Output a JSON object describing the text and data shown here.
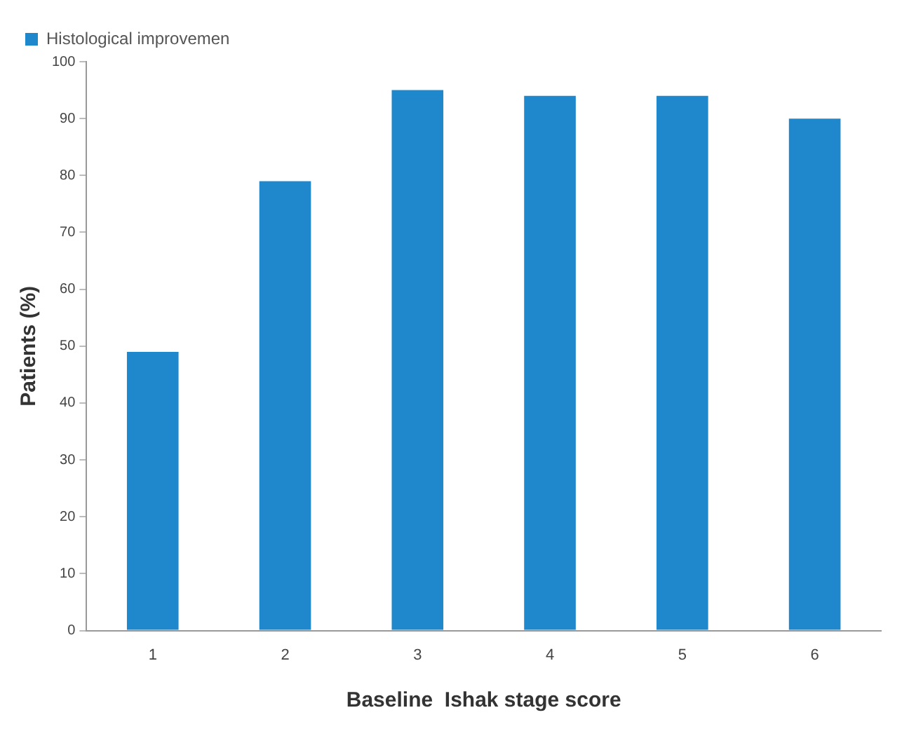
{
  "chart_data": {
    "type": "bar",
    "xlabel": "Baseline  Ishak stage score",
    "ylabel": "Patients (%)",
    "categories": [
      "1",
      "2",
      "3",
      "4",
      "5",
      "6"
    ],
    "series": [
      {
        "name": "Histological improvemen",
        "color": "#1f88cc",
        "values": [
          49,
          79,
          95,
          94,
          94,
          90
        ]
      }
    ],
    "ylim": [
      0,
      100
    ],
    "yticks": [
      0,
      10,
      20,
      30,
      40,
      50,
      60,
      70,
      80,
      90,
      100
    ],
    "grid": false,
    "legend": "top left"
  }
}
